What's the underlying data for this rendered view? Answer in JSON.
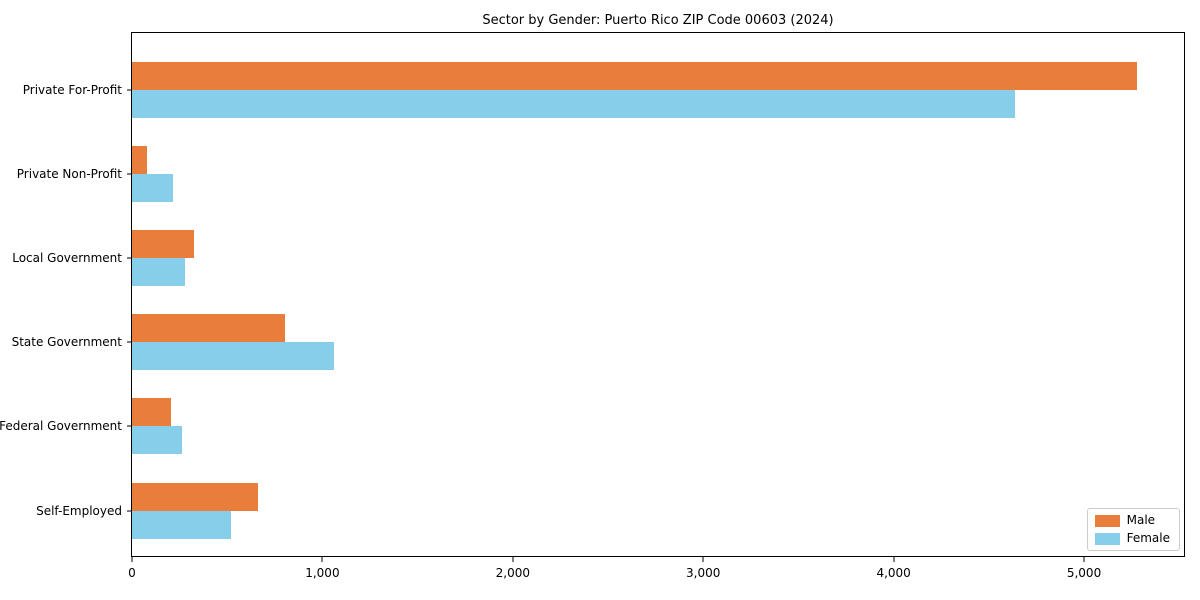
{
  "title": "Sector by Gender: Puerto Rico ZIP Code 00603 (2024)",
  "chart_data": {
    "type": "bar",
    "orientation": "horizontal",
    "title": "Sector by Gender: Puerto Rico ZIP Code 00603 (2024)",
    "categories": [
      "Private For-Profit",
      "Private Non-Profit",
      "Local Government",
      "State Government",
      "Federal Government",
      "Self-Employed"
    ],
    "series": [
      {
        "name": "Male",
        "color": "#E87D3C",
        "values": [
          5280,
          80,
          325,
          805,
          205,
          660
        ]
      },
      {
        "name": "Female",
        "color": "#87CEEB",
        "values": [
          4640,
          215,
          280,
          1060,
          265,
          520
        ]
      }
    ],
    "xlabel": "",
    "ylabel": "",
    "xlim": [
      0,
      5525
    ],
    "xticks": [
      0,
      1000,
      2000,
      3000,
      4000,
      5000
    ],
    "xtick_labels": [
      "0",
      "1,000",
      "2,000",
      "3,000",
      "4,000",
      "5,000"
    ],
    "legend_position": "lower right",
    "grid": false,
    "frame": true
  },
  "colors": {
    "axis": "#000000",
    "legend_border": "#cccccc",
    "background": "#ffffff"
  }
}
